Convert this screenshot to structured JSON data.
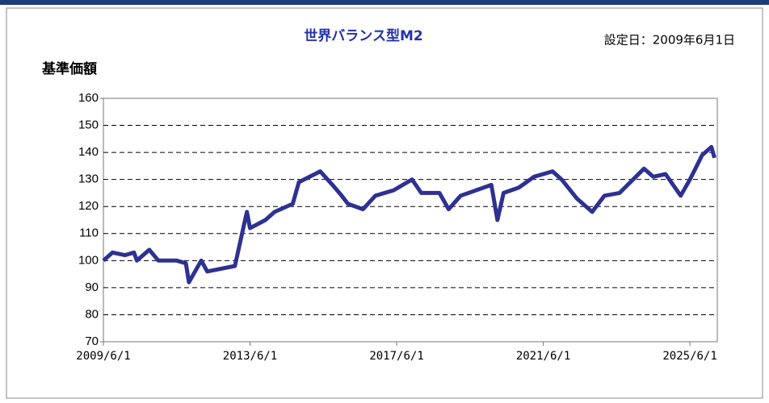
{
  "chart_data": {
    "type": "line",
    "title": "世界バランス型M2",
    "subtitle": "設定日：2009年6月1日",
    "ylabel": "基準価額",
    "color": "#2e3192",
    "grid": true,
    "x": [
      "2009/6/1",
      "2009/9/1",
      "2010/1/1",
      "2010/4/1",
      "2010/5/1",
      "2010/9/1",
      "2010/12/1",
      "2011/6/1",
      "2011/9/1",
      "2011/10/1",
      "2012/2/1",
      "2012/4/1",
      "2013/1/1",
      "2013/4/1",
      "2013/5/1",
      "2013/6/1",
      "2013/11/1",
      "2014/2/1",
      "2014/8/1",
      "2014/10/1",
      "2015/5/1",
      "2015/9/1",
      "2015/12/1",
      "2016/2/1",
      "2016/7/1",
      "2016/11/1",
      "2017/5/1",
      "2017/11/1",
      "2018/2/1",
      "2018/8/1",
      "2018/11/1",
      "2019/3/1",
      "2020/1/1",
      "2020/3/1",
      "2020/5/1",
      "2020/10/1",
      "2021/3/1",
      "2021/9/1",
      "2021/12/1",
      "2022/5/1",
      "2022/10/1",
      "2023/2/1",
      "2023/7/1",
      "2024/3/1",
      "2024/6/1",
      "2024/10/1",
      "2025/3/1",
      "2025/6/1",
      "2025/10/1",
      "2026/1/1",
      "2026/2/1"
    ],
    "values": [
      100,
      103,
      102,
      103,
      100,
      104,
      100,
      100,
      99,
      92,
      100,
      96,
      98,
      113,
      118,
      112,
      115,
      118,
      121,
      129,
      133,
      128,
      124,
      121,
      119,
      124,
      126,
      130,
      125,
      125,
      119,
      124,
      128,
      115,
      125,
      127,
      131,
      133,
      130,
      123,
      118,
      124,
      125,
      134,
      131,
      132,
      124,
      130,
      139,
      142,
      138
    ],
    "xlim": [
      "2009/6/1",
      "2026/3/1"
    ],
    "xticks": [
      "2009/6/1",
      "2013/6/1",
      "2017/6/1",
      "2021/6/1",
      "2025/6/1"
    ],
    "ylim": [
      70,
      160
    ],
    "yticks": [
      70,
      80,
      90,
      100,
      110,
      120,
      130,
      140,
      150,
      160
    ]
  }
}
